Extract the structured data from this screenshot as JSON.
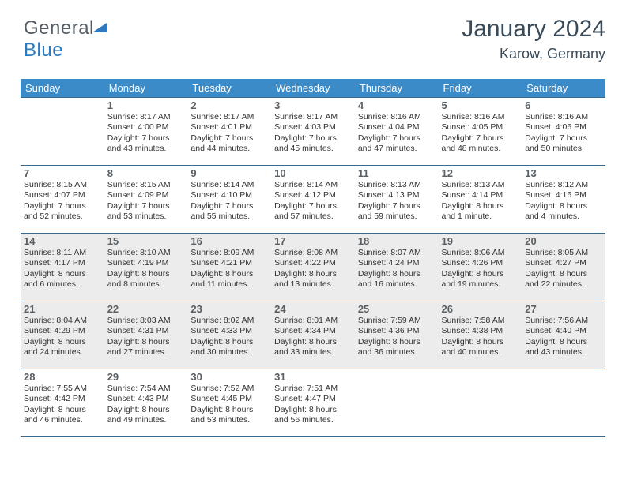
{
  "brand": {
    "part1": "General",
    "part2": "Blue"
  },
  "title": "January 2024",
  "location": "Karow, Germany",
  "colors": {
    "header_bg": "#3b8bc9",
    "header_fg": "#ffffff",
    "rule": "#3b6a8f",
    "gray_row": "#ececec",
    "title_color": "#3a4a57",
    "logo_gray": "#555c63",
    "logo_blue": "#2e7ac0"
  },
  "weekdays": [
    "Sunday",
    "Monday",
    "Tuesday",
    "Wednesday",
    "Thursday",
    "Friday",
    "Saturday"
  ],
  "weeks": [
    {
      "shaded": false,
      "cells": [
        {
          "num": "",
          "sunrise": "",
          "sunset": "",
          "daylight": ""
        },
        {
          "num": "1",
          "sunrise": "Sunrise: 8:17 AM",
          "sunset": "Sunset: 4:00 PM",
          "daylight": "Daylight: 7 hours and 43 minutes."
        },
        {
          "num": "2",
          "sunrise": "Sunrise: 8:17 AM",
          "sunset": "Sunset: 4:01 PM",
          "daylight": "Daylight: 7 hours and 44 minutes."
        },
        {
          "num": "3",
          "sunrise": "Sunrise: 8:17 AM",
          "sunset": "Sunset: 4:03 PM",
          "daylight": "Daylight: 7 hours and 45 minutes."
        },
        {
          "num": "4",
          "sunrise": "Sunrise: 8:16 AM",
          "sunset": "Sunset: 4:04 PM",
          "daylight": "Daylight: 7 hours and 47 minutes."
        },
        {
          "num": "5",
          "sunrise": "Sunrise: 8:16 AM",
          "sunset": "Sunset: 4:05 PM",
          "daylight": "Daylight: 7 hours and 48 minutes."
        },
        {
          "num": "6",
          "sunrise": "Sunrise: 8:16 AM",
          "sunset": "Sunset: 4:06 PM",
          "daylight": "Daylight: 7 hours and 50 minutes."
        }
      ]
    },
    {
      "shaded": false,
      "cells": [
        {
          "num": "7",
          "sunrise": "Sunrise: 8:15 AM",
          "sunset": "Sunset: 4:07 PM",
          "daylight": "Daylight: 7 hours and 52 minutes."
        },
        {
          "num": "8",
          "sunrise": "Sunrise: 8:15 AM",
          "sunset": "Sunset: 4:09 PM",
          "daylight": "Daylight: 7 hours and 53 minutes."
        },
        {
          "num": "9",
          "sunrise": "Sunrise: 8:14 AM",
          "sunset": "Sunset: 4:10 PM",
          "daylight": "Daylight: 7 hours and 55 minutes."
        },
        {
          "num": "10",
          "sunrise": "Sunrise: 8:14 AM",
          "sunset": "Sunset: 4:12 PM",
          "daylight": "Daylight: 7 hours and 57 minutes."
        },
        {
          "num": "11",
          "sunrise": "Sunrise: 8:13 AM",
          "sunset": "Sunset: 4:13 PM",
          "daylight": "Daylight: 7 hours and 59 minutes."
        },
        {
          "num": "12",
          "sunrise": "Sunrise: 8:13 AM",
          "sunset": "Sunset: 4:14 PM",
          "daylight": "Daylight: 8 hours and 1 minute."
        },
        {
          "num": "13",
          "sunrise": "Sunrise: 8:12 AM",
          "sunset": "Sunset: 4:16 PM",
          "daylight": "Daylight: 8 hours and 4 minutes."
        }
      ]
    },
    {
      "shaded": true,
      "cells": [
        {
          "num": "14",
          "sunrise": "Sunrise: 8:11 AM",
          "sunset": "Sunset: 4:17 PM",
          "daylight": "Daylight: 8 hours and 6 minutes."
        },
        {
          "num": "15",
          "sunrise": "Sunrise: 8:10 AM",
          "sunset": "Sunset: 4:19 PM",
          "daylight": "Daylight: 8 hours and 8 minutes."
        },
        {
          "num": "16",
          "sunrise": "Sunrise: 8:09 AM",
          "sunset": "Sunset: 4:21 PM",
          "daylight": "Daylight: 8 hours and 11 minutes."
        },
        {
          "num": "17",
          "sunrise": "Sunrise: 8:08 AM",
          "sunset": "Sunset: 4:22 PM",
          "daylight": "Daylight: 8 hours and 13 minutes."
        },
        {
          "num": "18",
          "sunrise": "Sunrise: 8:07 AM",
          "sunset": "Sunset: 4:24 PM",
          "daylight": "Daylight: 8 hours and 16 minutes."
        },
        {
          "num": "19",
          "sunrise": "Sunrise: 8:06 AM",
          "sunset": "Sunset: 4:26 PM",
          "daylight": "Daylight: 8 hours and 19 minutes."
        },
        {
          "num": "20",
          "sunrise": "Sunrise: 8:05 AM",
          "sunset": "Sunset: 4:27 PM",
          "daylight": "Daylight: 8 hours and 22 minutes."
        }
      ]
    },
    {
      "shaded": true,
      "cells": [
        {
          "num": "21",
          "sunrise": "Sunrise: 8:04 AM",
          "sunset": "Sunset: 4:29 PM",
          "daylight": "Daylight: 8 hours and 24 minutes."
        },
        {
          "num": "22",
          "sunrise": "Sunrise: 8:03 AM",
          "sunset": "Sunset: 4:31 PM",
          "daylight": "Daylight: 8 hours and 27 minutes."
        },
        {
          "num": "23",
          "sunrise": "Sunrise: 8:02 AM",
          "sunset": "Sunset: 4:33 PM",
          "daylight": "Daylight: 8 hours and 30 minutes."
        },
        {
          "num": "24",
          "sunrise": "Sunrise: 8:01 AM",
          "sunset": "Sunset: 4:34 PM",
          "daylight": "Daylight: 8 hours and 33 minutes."
        },
        {
          "num": "25",
          "sunrise": "Sunrise: 7:59 AM",
          "sunset": "Sunset: 4:36 PM",
          "daylight": "Daylight: 8 hours and 36 minutes."
        },
        {
          "num": "26",
          "sunrise": "Sunrise: 7:58 AM",
          "sunset": "Sunset: 4:38 PM",
          "daylight": "Daylight: 8 hours and 40 minutes."
        },
        {
          "num": "27",
          "sunrise": "Sunrise: 7:56 AM",
          "sunset": "Sunset: 4:40 PM",
          "daylight": "Daylight: 8 hours and 43 minutes."
        }
      ]
    },
    {
      "shaded": false,
      "cells": [
        {
          "num": "28",
          "sunrise": "Sunrise: 7:55 AM",
          "sunset": "Sunset: 4:42 PM",
          "daylight": "Daylight: 8 hours and 46 minutes."
        },
        {
          "num": "29",
          "sunrise": "Sunrise: 7:54 AM",
          "sunset": "Sunset: 4:43 PM",
          "daylight": "Daylight: 8 hours and 49 minutes."
        },
        {
          "num": "30",
          "sunrise": "Sunrise: 7:52 AM",
          "sunset": "Sunset: 4:45 PM",
          "daylight": "Daylight: 8 hours and 53 minutes."
        },
        {
          "num": "31",
          "sunrise": "Sunrise: 7:51 AM",
          "sunset": "Sunset: 4:47 PM",
          "daylight": "Daylight: 8 hours and 56 minutes."
        },
        {
          "num": "",
          "sunrise": "",
          "sunset": "",
          "daylight": ""
        },
        {
          "num": "",
          "sunrise": "",
          "sunset": "",
          "daylight": ""
        },
        {
          "num": "",
          "sunrise": "",
          "sunset": "",
          "daylight": ""
        }
      ]
    }
  ]
}
